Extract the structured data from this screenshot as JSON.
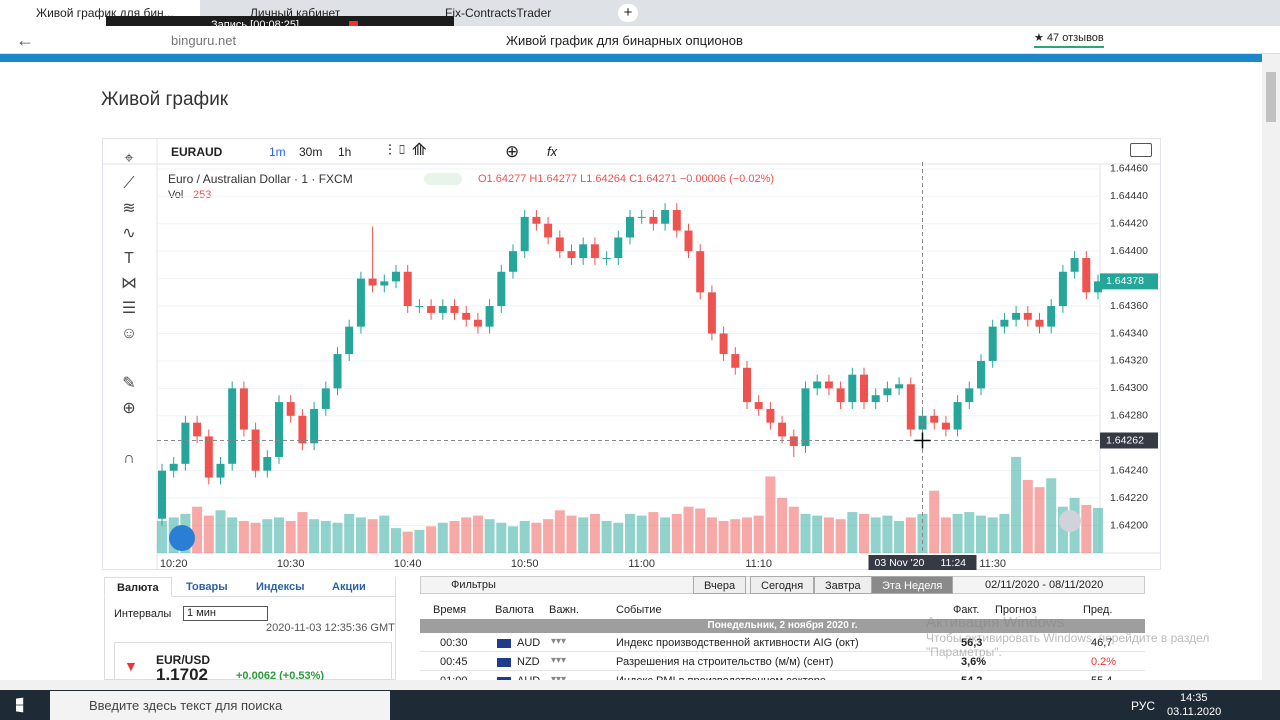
{
  "browser": {
    "tabs": [
      "Живой график для бин...",
      "Личный кабинет",
      "Fix-ContractsTrader"
    ],
    "recording": "Запись [00:08:25]",
    "url": "binguru.net",
    "page_title": "Живой график для бинарных опционов",
    "reviews": "★ 47 отзывов"
  },
  "page": {
    "heading": "Живой график"
  },
  "chart_data": {
    "type": "candlestick",
    "symbol": "EURAUD",
    "intervals": [
      "1m",
      "30m",
      "1h"
    ],
    "legend": "Euro / Australian Dollar · 1 · FXCM",
    "ohlc_text": "O1.64277 H1.64277 L1.64264 C1.64271 −0.00006 (−0.02%)",
    "vol_label": "Vol",
    "vol_value": 253,
    "categories": [
      null,
      "10:20",
      null,
      null,
      null,
      null,
      null,
      null,
      null,
      null,
      null,
      "10:30",
      null,
      null,
      null,
      null,
      null,
      null,
      null,
      null,
      null,
      "10:40",
      null,
      null,
      null,
      null,
      null,
      null,
      null,
      null,
      null,
      "10:50",
      null,
      null,
      null,
      null,
      null,
      null,
      null,
      null,
      null,
      "11:00",
      null,
      null,
      null,
      null,
      null,
      null,
      null,
      null,
      null,
      "11:10",
      null,
      null,
      null,
      null,
      null,
      null,
      null,
      null,
      null,
      null,
      null,
      null,
      null,
      null,
      null,
      null,
      null,
      null,
      null,
      "11:30",
      null,
      null,
      null,
      null,
      null,
      null,
      null,
      null,
      null
    ],
    "open": [
      1.64205,
      1.6424,
      1.64245,
      1.64275,
      1.64265,
      1.64235,
      1.64245,
      1.643,
      1.6427,
      1.6424,
      1.6425,
      1.6429,
      1.6428,
      1.6426,
      1.64285,
      1.643,
      1.64325,
      1.64345,
      1.6438,
      1.64375,
      1.64378,
      1.64385,
      1.6436,
      1.6436,
      1.64355,
      1.6436,
      1.64355,
      1.6435,
      1.64345,
      1.6436,
      1.64385,
      1.644,
      1.64425,
      1.6442,
      1.6441,
      1.644,
      1.64395,
      1.64405,
      1.64395,
      1.64395,
      1.6441,
      1.64425,
      1.64425,
      1.6442,
      1.6443,
      1.64415,
      1.644,
      1.6437,
      1.6434,
      1.64325,
      1.64315,
      1.6429,
      1.64285,
      1.64275,
      1.64265,
      1.64258,
      1.643,
      1.64305,
      1.643,
      1.6429,
      1.6431,
      1.6429,
      1.64295,
      1.643,
      1.64303,
      1.6427,
      1.6428,
      1.64275,
      1.6427,
      1.6429,
      1.643,
      1.6432,
      1.64345,
      1.6435,
      1.64355,
      1.6435,
      1.64345,
      1.6436,
      1.64385,
      1.64395,
      1.6437
    ],
    "high": [
      1.64245,
      1.6425,
      1.6428,
      1.6428,
      1.6427,
      1.6425,
      1.64305,
      1.64305,
      1.64275,
      1.64255,
      1.64295,
      1.64295,
      1.64285,
      1.6429,
      1.64305,
      1.6433,
      1.6435,
      1.64385,
      1.64418,
      1.64383,
      1.6439,
      1.6439,
      1.64365,
      1.64365,
      1.64365,
      1.64365,
      1.6436,
      1.64355,
      1.64365,
      1.6439,
      1.64405,
      1.6443,
      1.6443,
      1.64425,
      1.64415,
      1.64405,
      1.6441,
      1.6441,
      1.644,
      1.64415,
      1.6443,
      1.6443,
      1.6443,
      1.64435,
      1.64435,
      1.6442,
      1.64405,
      1.64375,
      1.64345,
      1.6433,
      1.6432,
      1.64295,
      1.6429,
      1.6428,
      1.6427,
      1.64305,
      1.6431,
      1.6431,
      1.64305,
      1.64315,
      1.64315,
      1.643,
      1.64305,
      1.64308,
      1.64308,
      1.64285,
      1.64285,
      1.6428,
      1.64295,
      1.64305,
      1.64325,
      1.6435,
      1.64355,
      1.6436,
      1.6436,
      1.64355,
      1.64365,
      1.6439,
      1.644,
      1.644,
      1.64383
    ],
    "low": [
      1.642,
      1.64235,
      1.6424,
      1.6426,
      1.6423,
      1.6423,
      1.6424,
      1.64265,
      1.64235,
      1.64235,
      1.64245,
      1.64275,
      1.64255,
      1.64255,
      1.6428,
      1.64295,
      1.6432,
      1.6434,
      1.6437,
      1.6437,
      1.64373,
      1.64355,
      1.64355,
      1.6435,
      1.6435,
      1.6435,
      1.64345,
      1.6434,
      1.6434,
      1.64355,
      1.6438,
      1.64395,
      1.64415,
      1.64405,
      1.64395,
      1.6439,
      1.6439,
      1.6439,
      1.6439,
      1.6439,
      1.64405,
      1.6442,
      1.64415,
      1.64415,
      1.6441,
      1.64395,
      1.64365,
      1.64335,
      1.6432,
      1.6431,
      1.64285,
      1.6428,
      1.6427,
      1.6426,
      1.6425,
      1.64253,
      1.64295,
      1.64295,
      1.64285,
      1.64285,
      1.64285,
      1.64285,
      1.6429,
      1.64295,
      1.64265,
      1.64265,
      1.6427,
      1.64265,
      1.64265,
      1.64285,
      1.64295,
      1.64315,
      1.6434,
      1.64345,
      1.64345,
      1.6434,
      1.6434,
      1.64355,
      1.6438,
      1.64365,
      1.64365
    ],
    "close": [
      1.6424,
      1.64245,
      1.64275,
      1.64265,
      1.64235,
      1.64245,
      1.643,
      1.6427,
      1.6424,
      1.6425,
      1.6429,
      1.6428,
      1.6426,
      1.64285,
      1.643,
      1.64325,
      1.64345,
      1.6438,
      1.64375,
      1.64378,
      1.64385,
      1.6436,
      1.6436,
      1.64355,
      1.6436,
      1.64355,
      1.6435,
      1.64345,
      1.6436,
      1.64385,
      1.644,
      1.64425,
      1.6442,
      1.6441,
      1.644,
      1.64395,
      1.64405,
      1.64395,
      1.64395,
      1.6441,
      1.64425,
      1.64425,
      1.6442,
      1.6443,
      1.64415,
      1.644,
      1.6437,
      1.6434,
      1.64325,
      1.64315,
      1.6429,
      1.64285,
      1.64275,
      1.64265,
      1.64258,
      1.643,
      1.64305,
      1.643,
      1.6429,
      1.6431,
      1.6429,
      1.64295,
      1.643,
      1.64303,
      1.6427,
      1.6428,
      1.64275,
      1.6427,
      1.6429,
      1.643,
      1.6432,
      1.64345,
      1.6435,
      1.64355,
      1.6435,
      1.64345,
      1.6436,
      1.64385,
      1.64395,
      1.6437,
      1.64378
    ],
    "volume": [
      180,
      200,
      220,
      260,
      210,
      240,
      200,
      180,
      170,
      190,
      200,
      180,
      230,
      190,
      180,
      170,
      220,
      200,
      190,
      210,
      140,
      120,
      130,
      150,
      170,
      180,
      200,
      210,
      190,
      170,
      150,
      180,
      170,
      190,
      240,
      210,
      200,
      220,
      180,
      170,
      220,
      210,
      230,
      200,
      220,
      260,
      250,
      200,
      180,
      190,
      200,
      210,
      430,
      310,
      260,
      220,
      210,
      200,
      190,
      230,
      220,
      200,
      210,
      180,
      200,
      220,
      350,
      200,
      220,
      230,
      210,
      200,
      220,
      540,
      410,
      370,
      420,
      260,
      310,
      270,
      253
    ],
    "up_color": "#26a69a",
    "down_color": "#ef5350",
    "ylim": [
      1.6418,
      1.64465
    ],
    "yticks": [
      {
        "value": 1.642,
        "label": "1.64200"
      },
      {
        "value": 1.6422,
        "label": "1.64220"
      },
      {
        "value": 1.6424,
        "label": "1.64240"
      },
      {
        "value": 1.6426,
        "label": "1.64260"
      },
      {
        "value": 1.6428,
        "label": "1.64280"
      },
      {
        "value": 1.643,
        "label": "1.64300"
      },
      {
        "value": 1.6432,
        "label": "1.64320"
      },
      {
        "value": 1.6434,
        "label": "1.64340"
      },
      {
        "value": 1.6436,
        "label": "1.64360"
      },
      {
        "value": 1.6438,
        "label": "1.64380"
      },
      {
        "value": 1.644,
        "label": "1.64400"
      },
      {
        "value": 1.6442,
        "label": "1.64420"
      },
      {
        "value": 1.6444,
        "label": "1.64440"
      },
      {
        "value": 1.6446,
        "label": "1.64460"
      }
    ],
    "grid": true,
    "last_price": 1.64378,
    "crosshair": {
      "date": "03 Nov '20",
      "time": "11:24",
      "price": 1.64262
    }
  },
  "panel": {
    "tabs": [
      "Валюта",
      "Товары",
      "Индексы",
      "Акции"
    ],
    "interval_label": "Интервалы",
    "interval_value": "1 мин",
    "timestamp": "2020-11-03 12:35:36 GMT",
    "pair": "EUR/USD",
    "price": "1.1702",
    "change": "+0.0062 (+0.53%)"
  },
  "calendar": {
    "filter": "Фильтры",
    "buttons": [
      "Вчера",
      "Сегодня",
      "Завтра",
      "Эта Неделя"
    ],
    "range": "02/11/2020 - 08/11/2020",
    "headers": [
      "Время",
      "Валюта",
      "Важн.",
      "Событие",
      "Факт.",
      "Прогноз",
      "Пред."
    ],
    "day": "Понедельник, 2 ноября 2020 г.",
    "rows": [
      {
        "time": "00:30",
        "currency": "AUD",
        "event": "Индекс производственной активности AIG (окт)",
        "actual": "56,3",
        "previous": "46,7"
      },
      {
        "time": "00:45",
        "currency": "NZD",
        "event": "Разрешения на строительство (м/м) (сент)",
        "actual": "3,6%",
        "previous": "0.2%"
      },
      {
        "time": "01:00",
        "currency": "AUD",
        "event": "Индекс PMI в производственном секторе",
        "actual": "54,2",
        "previous": "55,4"
      }
    ]
  },
  "watermark": {
    "title": "Активация Windows",
    "text": "Чтобы активировать Windows, перейдите в раздел \"Параметры\"."
  },
  "taskbar": {
    "search": "Введите здесь текст для поиска",
    "lang": "РУС",
    "time": "14:35",
    "date": "03.11.2020"
  }
}
